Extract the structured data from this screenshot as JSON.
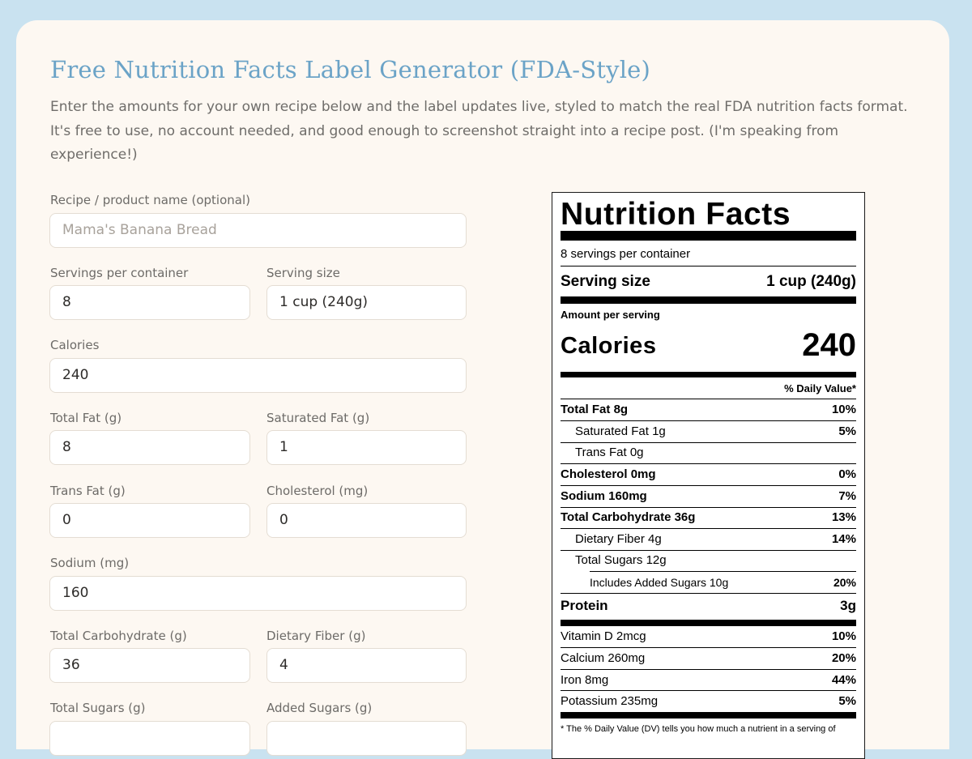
{
  "header": {
    "title": "Free Nutrition Facts Label Generator (FDA-Style)",
    "description": "Enter the amounts for your own recipe below and the label updates live, styled to match the real FDA nutrition facts format. It's free to use, no account needed, and good enough to screenshot straight into a recipe post. (I'm speaking from experience!)"
  },
  "form": {
    "recipe_name": {
      "label": "Recipe / product name (optional)",
      "placeholder": "Mama's Banana Bread",
      "value": ""
    },
    "servings": {
      "label": "Servings per container",
      "value": "8"
    },
    "serving_size": {
      "label": "Serving size",
      "value": "1 cup (240g)"
    },
    "calories": {
      "label": "Calories",
      "value": "240"
    },
    "total_fat": {
      "label": "Total Fat (g)",
      "value": "8"
    },
    "sat_fat": {
      "label": "Saturated Fat (g)",
      "value": "1"
    },
    "trans_fat": {
      "label": "Trans Fat (g)",
      "value": "0"
    },
    "cholesterol": {
      "label": "Cholesterol (mg)",
      "value": "0"
    },
    "sodium": {
      "label": "Sodium (mg)",
      "value": "160"
    },
    "total_carb": {
      "label": "Total Carbohydrate (g)",
      "value": "36"
    },
    "fiber": {
      "label": "Dietary Fiber (g)",
      "value": "4"
    },
    "total_sugars": {
      "label": "Total Sugars (g)",
      "value": ""
    },
    "added_sugars": {
      "label": "Added Sugars (g)",
      "value": ""
    }
  },
  "label": {
    "heading": "Nutrition Facts",
    "servings_line": "8 servings per container",
    "serving_size_label": "Serving size",
    "serving_size_value": "1 cup (240g)",
    "amount_per_serving": "Amount per serving",
    "calories_label": "Calories",
    "calories_value": "240",
    "dv_header": "% Daily Value*",
    "rows": {
      "total_fat": {
        "name": "Total Fat",
        "amount": "8g",
        "dv": "10%"
      },
      "sat_fat": {
        "name": "Saturated Fat",
        "amount": "1g",
        "dv": "5%"
      },
      "trans_fat": {
        "name": "Trans Fat",
        "amount": "0g",
        "dv": ""
      },
      "cholesterol": {
        "name": "Cholesterol",
        "amount": "0mg",
        "dv": "0%"
      },
      "sodium": {
        "name": "Sodium",
        "amount": "160mg",
        "dv": "7%"
      },
      "total_carb": {
        "name": "Total Carbohydrate",
        "amount": "36g",
        "dv": "13%"
      },
      "fiber": {
        "name": "Dietary Fiber",
        "amount": "4g",
        "dv": "14%"
      },
      "total_sugars": {
        "name": "Total Sugars",
        "amount": "12g",
        "dv": ""
      },
      "added_sugars": {
        "name": "Includes Added Sugars",
        "amount": "10g",
        "dv": "20%"
      },
      "protein": {
        "name": "Protein",
        "amount": "3g"
      }
    },
    "vitamins": {
      "vitd": {
        "text": "Vitamin D 2mcg",
        "dv": "10%"
      },
      "calcium": {
        "text": "Calcium 260mg",
        "dv": "20%"
      },
      "iron": {
        "text": "Iron 8mg",
        "dv": "44%"
      },
      "potassium": {
        "text": "Potassium 235mg",
        "dv": "5%"
      }
    },
    "footnote": "* The % Daily Value (DV) tells you how much a nutrient in a serving of"
  }
}
